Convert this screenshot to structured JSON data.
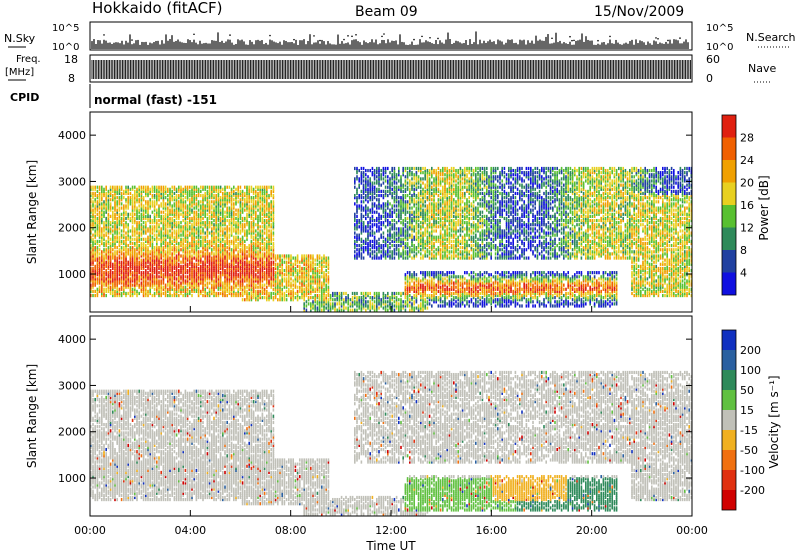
{
  "header": {
    "station": "Hokkaido (fitACF)",
    "beam": "Beam 09",
    "date": "15/Nov/2009"
  },
  "aux_panels": {
    "nsky_label": "N.Sky",
    "nsky_ticks": [
      "10^5",
      "10^0"
    ],
    "nsearch_label": "N.Search",
    "nsearch_ticks": [
      "10^5",
      "10^0"
    ],
    "freq_label_1": "Freq.",
    "freq_label_2": "[MHz]",
    "freq_ticks": [
      "18",
      "8"
    ],
    "nave_label": "Nave",
    "nave_ticks": [
      "60",
      "0"
    ],
    "cpid_label": "CPID",
    "cpid_value": "normal (fast) -151"
  },
  "chart_data": [
    {
      "type": "heatmap",
      "panel": "power",
      "xlabel": "",
      "ylabel": "Slant Range [km]",
      "xlim": [
        "00:00",
        "24:00"
      ],
      "ylim": [
        180,
        4500
      ],
      "yticks": [
        "1000",
        "2000",
        "3000",
        "4000"
      ],
      "colorbar_label": "Power [dB]",
      "colorbar_ticks": [
        "4",
        "8",
        "12",
        "16",
        "20",
        "24",
        "28"
      ],
      "colors": [
        "#1010e0",
        "#2040a0",
        "#2e8a5a",
        "#58c030",
        "#e8d020",
        "#f0a000",
        "#f06000",
        "#e02010"
      ]
    },
    {
      "type": "heatmap",
      "panel": "velocity",
      "xlabel": "Time UT",
      "ylabel": "Slant Range [km]",
      "xlim": [
        "00:00",
        "24:00"
      ],
      "ylim": [
        180,
        4500
      ],
      "yticks": [
        "1000",
        "2000",
        "3000",
        "4000"
      ],
      "xticks": [
        "00:00",
        "04:00",
        "08:00",
        "12:00",
        "16:00",
        "20:00",
        "00:00"
      ],
      "colorbar_label": "Velocity [m s⁻¹]",
      "colorbar_ticks": [
        "200",
        "100",
        "50",
        "15",
        "-15",
        "-50",
        "-100",
        "-200"
      ],
      "colors": [
        "#1030c0",
        "#2a60a0",
        "#2e8a5a",
        "#60c040",
        "#c0c0b8",
        "#f0b020",
        "#f07010",
        "#e03010",
        "#d00000"
      ]
    }
  ]
}
